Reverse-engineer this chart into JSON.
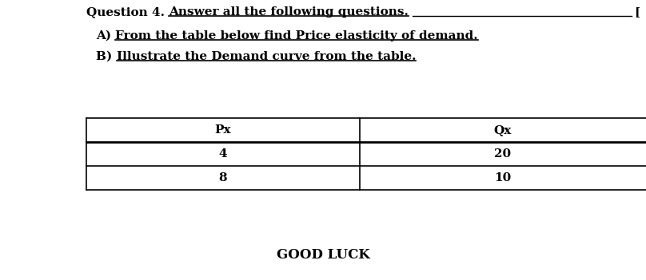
{
  "title_prefix": "Question 4. ",
  "title_underlined": "Answer all the following questions.",
  "title_marker": "[",
  "line_a_prefix": "A) ",
  "line_a_underlined": "From the table below find Price elasticity of demand.",
  "line_b_prefix": "B) ",
  "line_b_underlined": "Illustrate the Demand curve from the table.",
  "col1_header": "Px",
  "col2_header": "Qx",
  "rows": [
    [
      "4",
      "20"
    ],
    [
      "8",
      "10"
    ]
  ],
  "footer": "GOOD LUCK",
  "bg_color": "#ffffff",
  "text_color": "#000000",
  "font_size_title": 11,
  "font_size_sub": 11,
  "font_size_table": 11,
  "font_size_footer": 12
}
